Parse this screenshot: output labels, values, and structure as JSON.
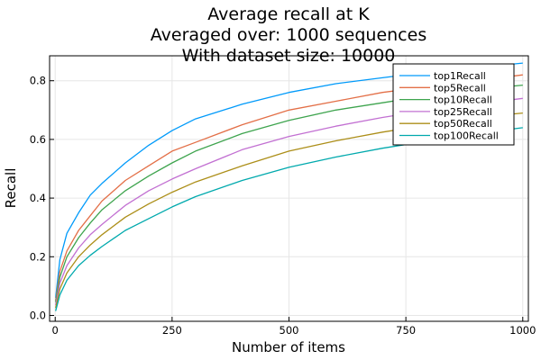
{
  "chart_data": {
    "type": "line",
    "title_lines": [
      "Average recall at K",
      "Averaged over: 1000 sequences",
      "With dataset size: 10000"
    ],
    "xlabel": "Number of items",
    "ylabel": "Recall",
    "xlim": [
      -12,
      1012
    ],
    "ylim": [
      -0.02,
      0.885
    ],
    "xticks": [
      0,
      250,
      500,
      750,
      1000
    ],
    "xtick_labels": [
      "0",
      "250",
      "500",
      "750",
      "1000"
    ],
    "yticks": [
      0.0,
      0.2,
      0.4,
      0.6,
      0.8
    ],
    "ytick_labels": [
      "0.0",
      "0.2",
      "0.4",
      "0.6",
      "0.8"
    ],
    "grid": true,
    "legend_position": "top-right",
    "x": [
      1,
      10,
      25,
      50,
      75,
      100,
      150,
      200,
      250,
      300,
      400,
      500,
      600,
      700,
      800,
      900,
      1000
    ],
    "series": [
      {
        "name": "top1Recall",
        "color": "#009AFA",
        "values": [
          0.06,
          0.19,
          0.28,
          0.35,
          0.41,
          0.45,
          0.52,
          0.58,
          0.63,
          0.67,
          0.72,
          0.76,
          0.79,
          0.81,
          0.83,
          0.845,
          0.86
        ]
      },
      {
        "name": "top5Recall",
        "color": "#E36F47",
        "values": [
          0.05,
          0.15,
          0.22,
          0.29,
          0.34,
          0.39,
          0.46,
          0.51,
          0.56,
          0.59,
          0.65,
          0.7,
          0.73,
          0.76,
          0.78,
          0.8,
          0.82
        ]
      },
      {
        "name": "top10Recall",
        "color": "#3EA44E",
        "values": [
          0.045,
          0.13,
          0.2,
          0.265,
          0.315,
          0.36,
          0.425,
          0.475,
          0.52,
          0.56,
          0.62,
          0.665,
          0.7,
          0.725,
          0.75,
          0.77,
          0.785
        ]
      },
      {
        "name": "top25Recall",
        "color": "#C270D2",
        "values": [
          0.035,
          0.11,
          0.17,
          0.23,
          0.275,
          0.31,
          0.375,
          0.425,
          0.465,
          0.5,
          0.565,
          0.61,
          0.645,
          0.675,
          0.7,
          0.72,
          0.74
        ]
      },
      {
        "name": "top50Recall",
        "color": "#AC8E18",
        "values": [
          0.025,
          0.09,
          0.145,
          0.2,
          0.24,
          0.275,
          0.335,
          0.38,
          0.42,
          0.455,
          0.51,
          0.56,
          0.595,
          0.625,
          0.65,
          0.675,
          0.69
        ]
      },
      {
        "name": "top100Recall",
        "color": "#00A9AD",
        "values": [
          0.015,
          0.07,
          0.12,
          0.17,
          0.205,
          0.235,
          0.29,
          0.33,
          0.37,
          0.405,
          0.46,
          0.505,
          0.54,
          0.57,
          0.595,
          0.62,
          0.64
        ]
      }
    ]
  }
}
